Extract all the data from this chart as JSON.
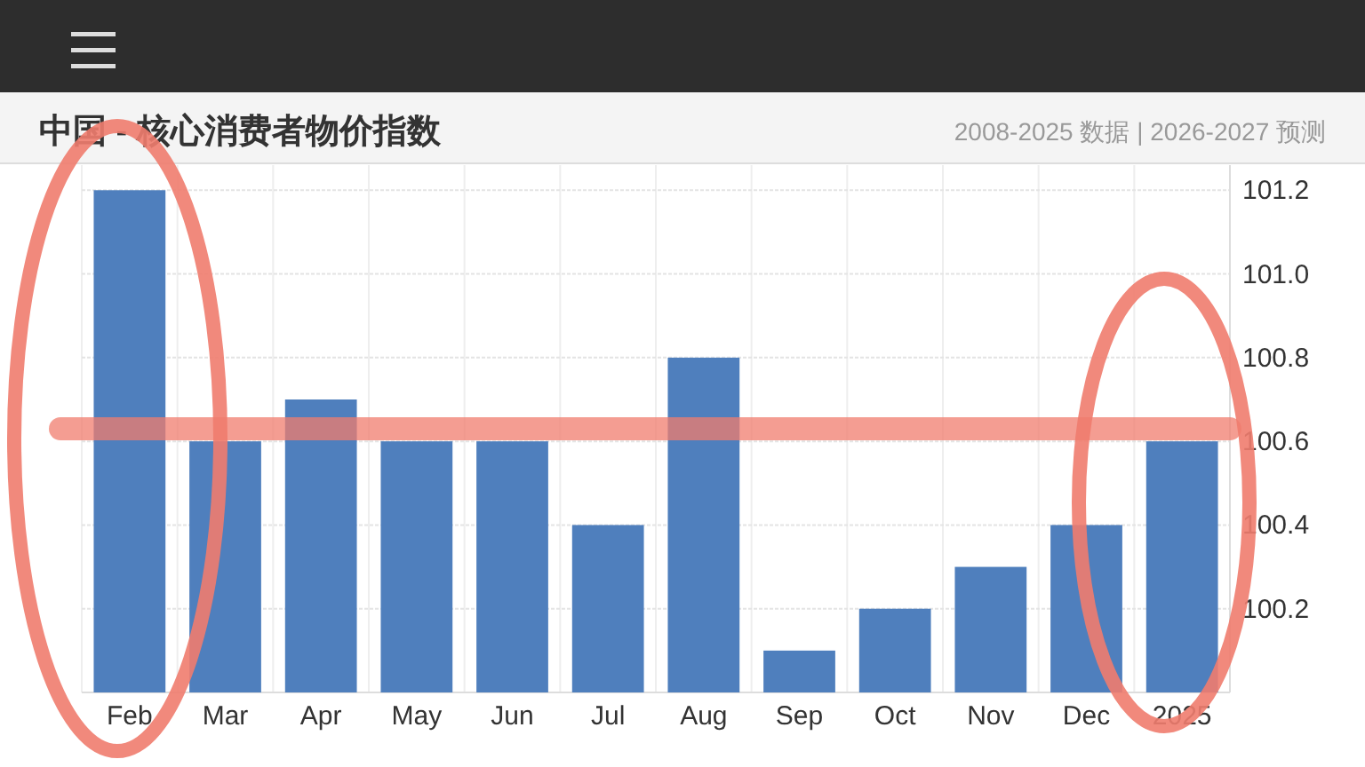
{
  "chart_data": {
    "type": "bar",
    "title": "中国 - 核心消费者物价指数",
    "subtitle": "2008-2025 数据 | 2026-2027 预测",
    "categories": [
      "Feb",
      "Mar",
      "Apr",
      "May",
      "Jun",
      "Jul",
      "Aug",
      "Sep",
      "Oct",
      "Nov",
      "Dec",
      "2025"
    ],
    "values": [
      101.2,
      100.6,
      100.7,
      100.6,
      100.6,
      100.4,
      100.8,
      100.1,
      100.2,
      100.3,
      100.4,
      100.6
    ],
    "color": "#4f7fbd",
    "ylim": [
      100.0,
      101.26
    ],
    "yticks": [
      {
        "value": 100.2,
        "label": "100.2"
      },
      {
        "value": 100.4,
        "label": "100.4"
      },
      {
        "value": 100.6,
        "label": "100.6"
      },
      {
        "value": 100.8,
        "label": "100.8"
      },
      {
        "value": 101.0,
        "label": "101.0"
      },
      {
        "value": 101.2,
        "label": "101.2"
      }
    ],
    "ref_lines": [
      {
        "axis": "y",
        "value": 100.63,
        "color": "#f07c6e"
      }
    ],
    "grid": true
  }
}
